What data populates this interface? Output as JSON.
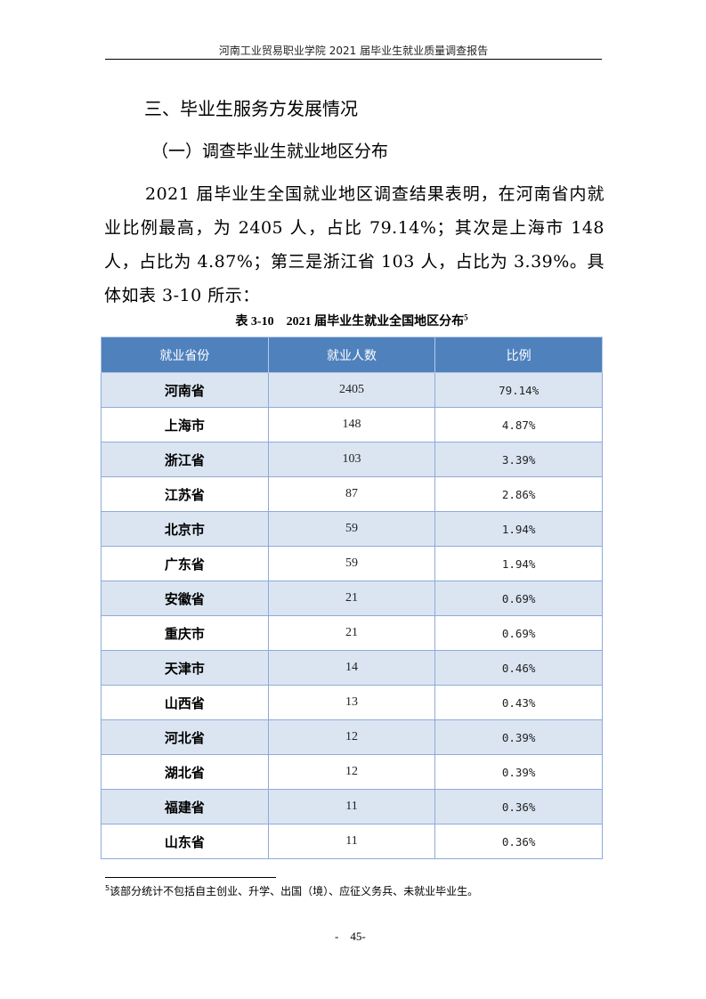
{
  "header": {
    "title": "河南工业贸易职业学院 2021 届毕业生就业质量调查报告"
  },
  "section_title": "三、毕业生服务方发展情况",
  "subsection_title": "（一）调查毕业生就业地区分布",
  "paragraph": "2021 届毕业生全国就业地区调查结果表明，在河南省内就业比例最高，为 2405 人，占比 79.14%；其次是上海市 148 人，占比为 4.87%；第三是浙江省 103 人，占比为 3.39%。具体如表 3-10 所示：",
  "table": {
    "caption": "表 3-10　2021 届毕业生就业全国地区分布",
    "caption_footnote_mark": "5",
    "columns": [
      "就业省份",
      "就业人数",
      "比例"
    ],
    "rows": [
      [
        "河南省",
        "2405",
        "79.14%"
      ],
      [
        "上海市",
        "148",
        "4.87%"
      ],
      [
        "浙江省",
        "103",
        "3.39%"
      ],
      [
        "江苏省",
        "87",
        "2.86%"
      ],
      [
        "北京市",
        "59",
        "1.94%"
      ],
      [
        "广东省",
        "59",
        "1.94%"
      ],
      [
        "安徽省",
        "21",
        "0.69%"
      ],
      [
        "重庆市",
        "21",
        "0.69%"
      ],
      [
        "天津市",
        "14",
        "0.46%"
      ],
      [
        "山西省",
        "13",
        "0.43%"
      ],
      [
        "河北省",
        "12",
        "0.39%"
      ],
      [
        "湖北省",
        "12",
        "0.39%"
      ],
      [
        "福建省",
        "11",
        "0.36%"
      ],
      [
        "山东省",
        "11",
        "0.36%"
      ]
    ],
    "colors": {
      "header_bg": "#4f81bd",
      "stripe_bg": "#dbe5f1",
      "border": "#8eaadb"
    }
  },
  "footnote": {
    "mark": "5",
    "text": "该部分统计不包括自主创业、升学、出国（境）、应征义务兵、未就业毕业生。"
  },
  "page_number": "-　45-"
}
